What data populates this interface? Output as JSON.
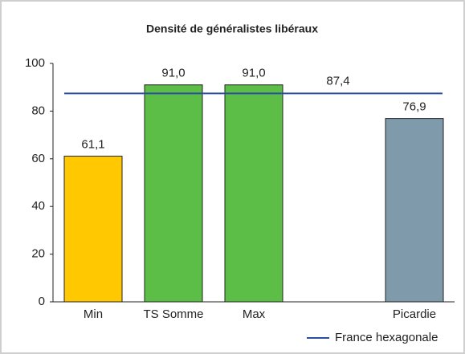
{
  "chart_data": {
    "type": "bar",
    "title": "Densité de généralistes libéraux",
    "categories": [
      "Min",
      "TS Somme",
      "Max",
      null,
      "Picardie"
    ],
    "values": [
      61.1,
      91.0,
      91.0,
      null,
      76.9
    ],
    "value_labels": [
      "61,1",
      "91,0",
      "91,0",
      null,
      "76,9"
    ],
    "colors": [
      "#ffc800",
      "#5cbd47",
      "#5cbd47",
      null,
      "#7e9aab"
    ],
    "reference_line": {
      "name": "France hexagonale",
      "value": 87.4,
      "value_label": "87,4",
      "color": "#2b4f9e"
    },
    "legend": "bottom-right",
    "ylim": [
      0,
      100
    ],
    "yticks": [
      0,
      20,
      40,
      60,
      80,
      100
    ],
    "grid": false
  }
}
